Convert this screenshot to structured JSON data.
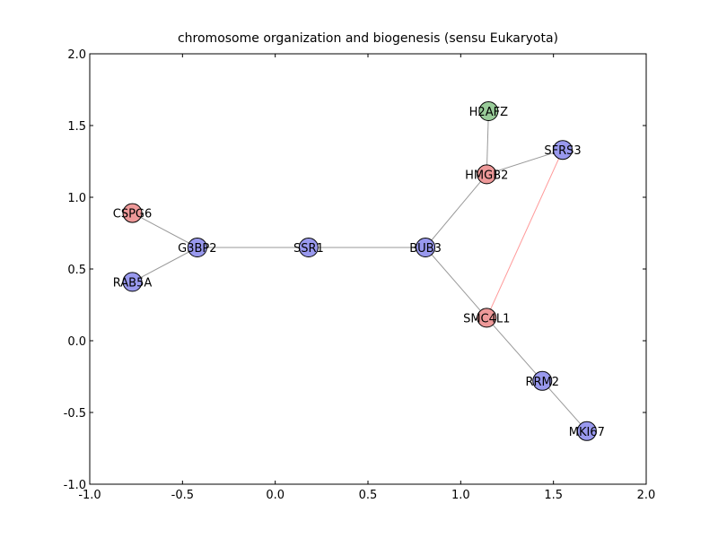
{
  "chart_data": {
    "type": "network",
    "title": "chromosome organization and biogenesis (sensu Eukaryota)",
    "xlim": [
      -1.0,
      2.0
    ],
    "ylim": [
      -1.0,
      2.0
    ],
    "xticks": [
      -1.0,
      -0.5,
      0.0,
      0.5,
      1.0,
      1.5,
      2.0
    ],
    "xtick_labels": [
      "-1.0",
      "-0.5",
      "0.0",
      "0.5",
      "1.0",
      "1.5",
      "2.0"
    ],
    "yticks": [
      -1.0,
      -0.5,
      0.0,
      0.5,
      1.0,
      1.5,
      2.0
    ],
    "ytick_labels": [
      "-1.0",
      "-0.5",
      "0.0",
      "0.5",
      "1.0",
      "1.5",
      "2.0"
    ],
    "colors": {
      "blue": "#9999ee",
      "red": "#ee9999",
      "green": "#99cc99",
      "edge_gray": "#999999",
      "edge_red": "#ff9999"
    },
    "nodes": [
      {
        "id": "H2AFZ",
        "x": 1.15,
        "y": 1.6,
        "color": "green"
      },
      {
        "id": "SFRS3",
        "x": 1.55,
        "y": 1.33,
        "color": "blue"
      },
      {
        "id": "HMGB2",
        "x": 1.14,
        "y": 1.16,
        "color": "red"
      },
      {
        "id": "CSPG6",
        "x": -0.77,
        "y": 0.89,
        "color": "red"
      },
      {
        "id": "G3BP2",
        "x": -0.42,
        "y": 0.65,
        "color": "blue"
      },
      {
        "id": "SSR1",
        "x": 0.18,
        "y": 0.65,
        "color": "blue"
      },
      {
        "id": "BUB3",
        "x": 0.81,
        "y": 0.65,
        "color": "blue"
      },
      {
        "id": "RAB5A",
        "x": -0.77,
        "y": 0.41,
        "color": "blue"
      },
      {
        "id": "SMC4L1",
        "x": 1.14,
        "y": 0.16,
        "color": "red"
      },
      {
        "id": "RRM2",
        "x": 1.44,
        "y": -0.28,
        "color": "blue"
      },
      {
        "id": "MKI67",
        "x": 1.68,
        "y": -0.63,
        "color": "blue"
      }
    ],
    "edges": [
      {
        "source": "H2AFZ",
        "target": "HMGB2",
        "color": "edge_gray"
      },
      {
        "source": "HMGB2",
        "target": "SFRS3",
        "color": "edge_gray"
      },
      {
        "source": "HMGB2",
        "target": "BUB3",
        "color": "edge_gray"
      },
      {
        "source": "SFRS3",
        "target": "SMC4L1",
        "color": "edge_red"
      },
      {
        "source": "CSPG6",
        "target": "G3BP2",
        "color": "edge_gray"
      },
      {
        "source": "RAB5A",
        "target": "G3BP2",
        "color": "edge_gray"
      },
      {
        "source": "G3BP2",
        "target": "SSR1",
        "color": "edge_gray"
      },
      {
        "source": "SSR1",
        "target": "BUB3",
        "color": "edge_gray"
      },
      {
        "source": "BUB3",
        "target": "SMC4L1",
        "color": "edge_gray"
      },
      {
        "source": "SMC4L1",
        "target": "RRM2",
        "color": "edge_gray"
      },
      {
        "source": "RRM2",
        "target": "MKI67",
        "color": "edge_gray"
      }
    ]
  }
}
